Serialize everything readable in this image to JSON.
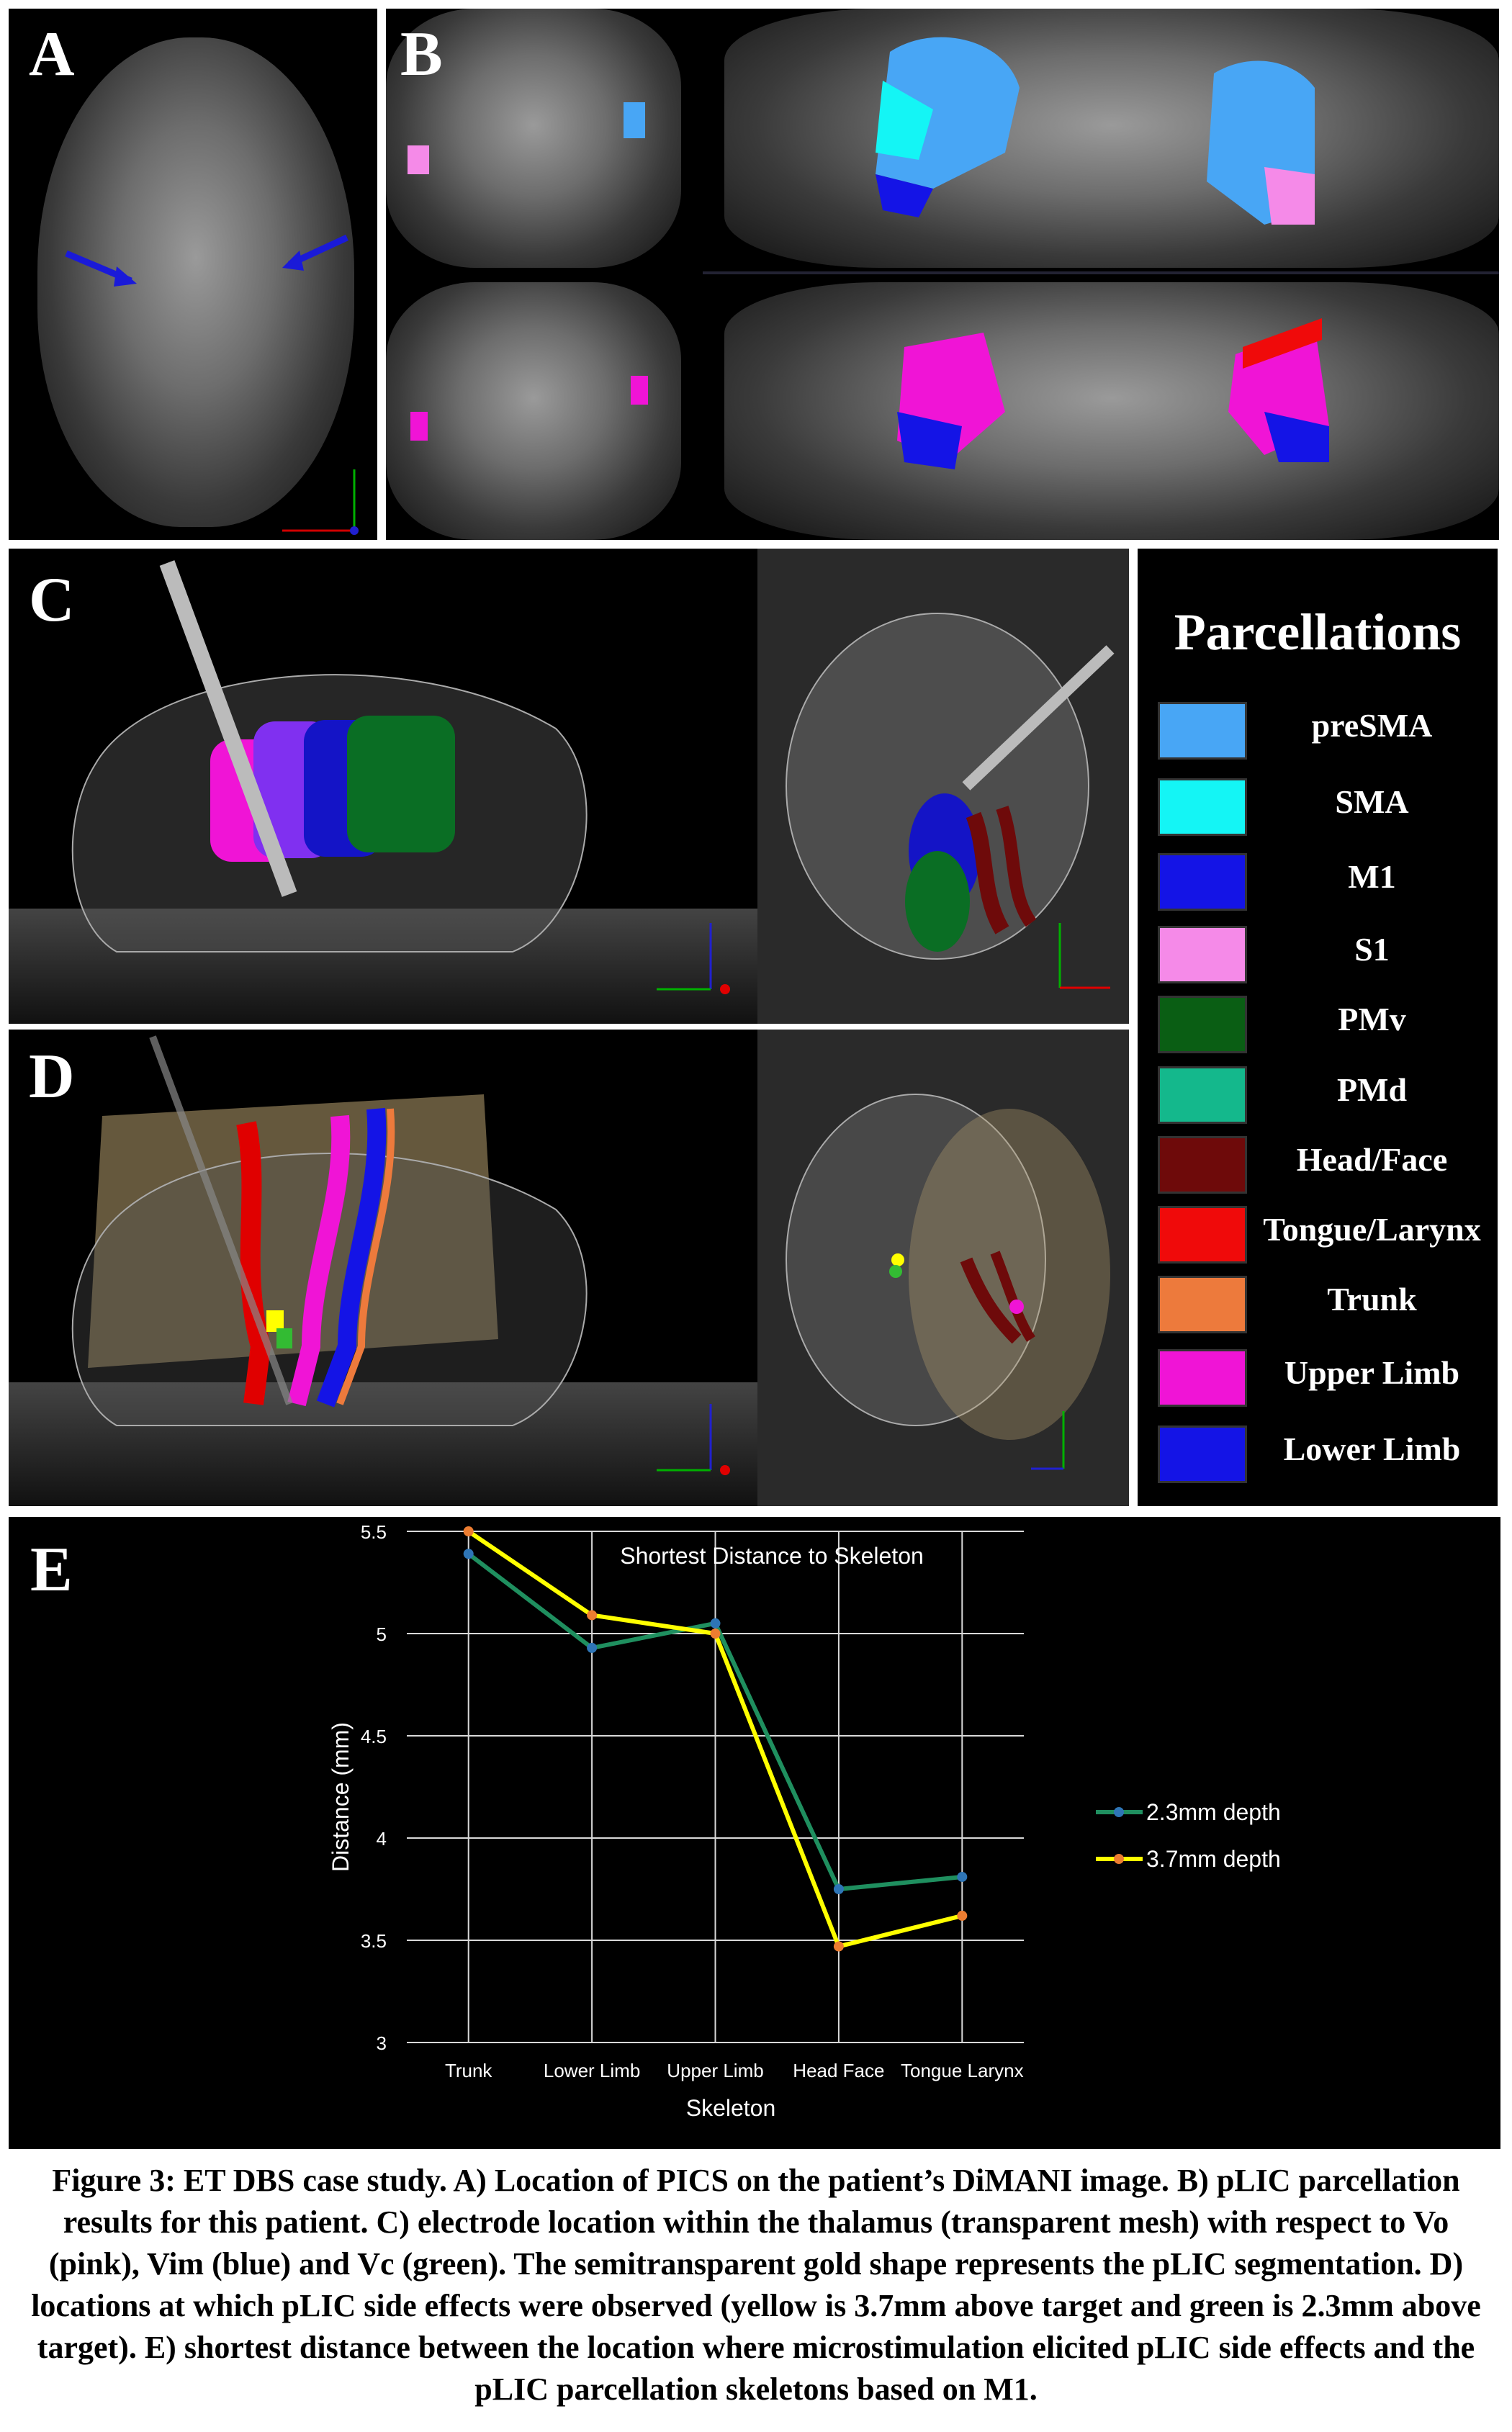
{
  "panels": {
    "a": "A",
    "b": "B",
    "c": "C",
    "d": "D",
    "e": "E"
  },
  "legend": {
    "title": "Parcellations",
    "items": [
      {
        "label": "preSMA",
        "color": "#48a6f5"
      },
      {
        "label": "SMA",
        "color": "#14f5f5"
      },
      {
        "label": "M1",
        "color": "#1414e6"
      },
      {
        "label": "S1",
        "color": "#f58ae8"
      },
      {
        "label": "PMv",
        "color": "#0a5e14"
      },
      {
        "label": "PMd",
        "color": "#14b88c"
      },
      {
        "label": "Head/Face",
        "color": "#6e0a0a"
      },
      {
        "label": "Tongue/Larynx",
        "color": "#f00a0a"
      },
      {
        "label": "Trunk",
        "color": "#ed7a3c"
      },
      {
        "label": "Upper Limb",
        "color": "#f014d6"
      },
      {
        "label": "Lower Limb",
        "color": "#1414e6"
      }
    ]
  },
  "chart_data": {
    "type": "line",
    "title": "Shortest Distance to Skeleton",
    "xlabel": "Skeleton",
    "ylabel": "Distance (mm)",
    "categories": [
      "Trunk",
      "Lower Limb",
      "Upper Limb",
      "Head Face",
      "Tongue Larynx"
    ],
    "ylim": [
      3,
      5.5
    ],
    "yticks": [
      "3",
      "3.5",
      "4",
      "4.5",
      "5",
      "5.5"
    ],
    "grid": true,
    "legend_position": "right",
    "series": [
      {
        "name": "2.3mm depth",
        "values": [
          5.39,
          4.93,
          5.05,
          3.75,
          3.81
        ],
        "color": "#1f8f5f",
        "marker": "#2e75b6"
      },
      {
        "name": "3.7mm depth",
        "values": [
          5.5,
          5.09,
          5.0,
          3.47,
          3.62
        ],
        "color": "#ffff00",
        "marker": "#ed7d31"
      }
    ]
  },
  "caption": "Figure 3: ET DBS case study. A) Location of PICS on the patient’s DiMANI image. B) pLIC parcellation results for this patient. C) electrode location within the thalamus (transparent mesh) with respect to Vo (pink), Vim (blue) and Vc (green). The semitransparent gold shape represents the pLIC segmentation. D) locations at which pLIC side effects were observed (yellow is 3.7mm above target and green is 2.3mm above target). E) shortest distance between the location where microstimulation elicited pLIC side effects and the pLIC parcellation skeletons based on M1."
}
